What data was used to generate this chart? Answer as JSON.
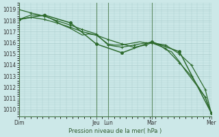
{
  "bg_color": "#cce8e8",
  "grid_color": "#aacccc",
  "line_color": "#2d6a2d",
  "xlabel": "Pression niveau de la mer( hPa )",
  "ylim": [
    1009.4,
    1019.6
  ],
  "yticks": [
    1010,
    1011,
    1012,
    1013,
    1014,
    1015,
    1016,
    1017,
    1018,
    1019
  ],
  "day_labels": [
    "Dim",
    "Jeu",
    "Lun",
    "Mar",
    "Mer"
  ],
  "day_positions": [
    0.0,
    0.39,
    0.45,
    0.67,
    0.97
  ],
  "series1_x": [
    0.0,
    0.03,
    0.06,
    0.09,
    0.13,
    0.16,
    0.19,
    0.22,
    0.26,
    0.29,
    0.32,
    0.35,
    0.39,
    0.45,
    0.48,
    0.52,
    0.55,
    0.58,
    0.61,
    0.64,
    0.67,
    0.71,
    0.74,
    0.77,
    0.81,
    0.84,
    0.87,
    0.9,
    0.94,
    0.97
  ],
  "series1_y": [
    1018.1,
    1018.3,
    1018.5,
    1018.5,
    1018.4,
    1018.2,
    1017.9,
    1017.6,
    1017.3,
    1017.0,
    1016.7,
    1016.8,
    1016.7,
    1015.9,
    1015.8,
    1015.8,
    1015.9,
    1016.0,
    1016.1,
    1016.0,
    1016.0,
    1015.8,
    1015.4,
    1015.2,
    1014.3,
    1013.5,
    1012.8,
    1012.1,
    1011.1,
    1009.7
  ],
  "series2_x": [
    0.0,
    0.06,
    0.13,
    0.19,
    0.26,
    0.32,
    0.39,
    0.45,
    0.52,
    0.58,
    0.64,
    0.67,
    0.74,
    0.81,
    0.87,
    0.94,
    0.97
  ],
  "series2_y": [
    1019.0,
    1018.7,
    1018.4,
    1018.0,
    1017.6,
    1017.2,
    1016.8,
    1015.8,
    1015.6,
    1015.8,
    1016.0,
    1016.0,
    1015.5,
    1014.2,
    1013.0,
    1011.1,
    1009.7
  ],
  "series3_x": [
    0.0,
    0.06,
    0.13,
    0.19,
    0.26,
    0.32,
    0.39,
    0.45,
    0.52,
    0.58,
    0.64,
    0.67,
    0.74,
    0.81,
    0.87,
    0.94,
    0.97
  ],
  "series3_y": [
    1018.1,
    1018.3,
    1018.1,
    1017.8,
    1017.4,
    1017.0,
    1016.7,
    1016.3,
    1015.9,
    1015.6,
    1015.8,
    1016.0,
    1015.8,
    1015.0,
    1014.0,
    1011.8,
    1009.7
  ],
  "series4_x": [
    0.0,
    0.13,
    0.26,
    0.39,
    0.52,
    0.67,
    0.81,
    0.97
  ],
  "series4_y": [
    1018.1,
    1018.5,
    1017.8,
    1015.9,
    1015.1,
    1016.1,
    1015.2,
    1009.7
  ]
}
